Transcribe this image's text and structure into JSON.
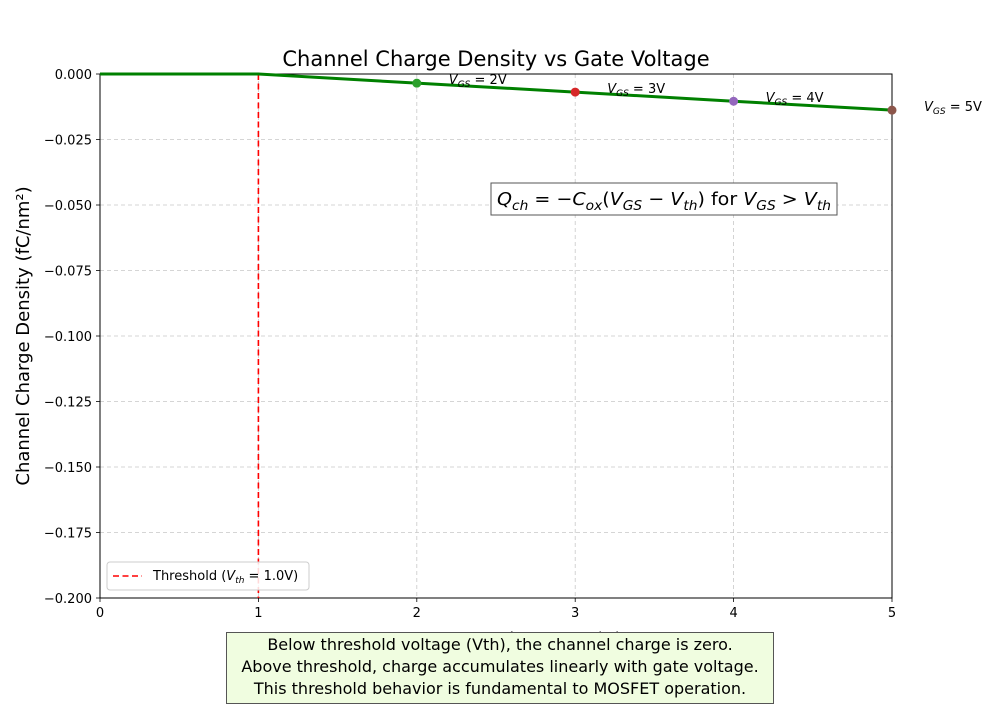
{
  "chart_data": {
    "type": "line",
    "title": "Channel Charge Density vs Gate Voltage",
    "xlabel": "Gate-Source Voltage Vₑₛ (V)",
    "xlabel_main": "Gate-Source Voltage V",
    "xlabel_sub": "GS",
    "xlabel_unit": " (V)",
    "ylabel": "Channel Charge Density (fC/nm²)",
    "xlim": [
      0,
      5
    ],
    "ylim": [
      -0.2,
      0.0
    ],
    "x_ticks": [
      "0",
      "1",
      "2",
      "3",
      "4",
      "5"
    ],
    "y_ticks": [
      "0.000",
      "−0.025",
      "−0.050",
      "−0.075",
      "−0.100",
      "−0.125",
      "−0.150",
      "−0.175",
      "−0.200"
    ],
    "grid": true,
    "series": [
      {
        "x": [
          0,
          1,
          2,
          3,
          4,
          5
        ],
        "y": [
          0,
          0,
          -0.0035,
          -0.0069,
          -0.0104,
          -0.0138
        ],
        "color": "#008000"
      }
    ],
    "threshold": {
      "x": 1.0,
      "label_pre": "Threshold (",
      "label_math": "V",
      "label_sub": "th",
      "label_post": " = 1.0V)",
      "color": "#ff0000"
    },
    "points": [
      {
        "x": 2,
        "y": -0.0035,
        "color": "#2ca02c",
        "label_v": "V",
        "label_sub": "GS",
        "label_val": " = 2V"
      },
      {
        "x": 3,
        "y": -0.0069,
        "color": "#d62728",
        "label_v": "V",
        "label_sub": "GS",
        "label_val": " = 3V"
      },
      {
        "x": 4,
        "y": -0.0104,
        "color": "#9467bd",
        "label_v": "V",
        "label_sub": "GS",
        "label_val": " = 4V"
      },
      {
        "x": 5,
        "y": -0.0138,
        "color": "#8c564b",
        "label_v": "V",
        "label_sub": "GS",
        "label_val": " = 5V"
      }
    ],
    "equation": "Q_ch = −C_ox(V_GS − V_th) for V_GS > V_th",
    "legend_placement": "lower-left"
  },
  "note": {
    "lines": [
      "Below threshold voltage (Vth), the channel charge is zero.",
      "Above threshold, charge accumulates linearly with gate voltage.",
      "This threshold behavior is fundamental to MOSFET operation."
    ]
  }
}
